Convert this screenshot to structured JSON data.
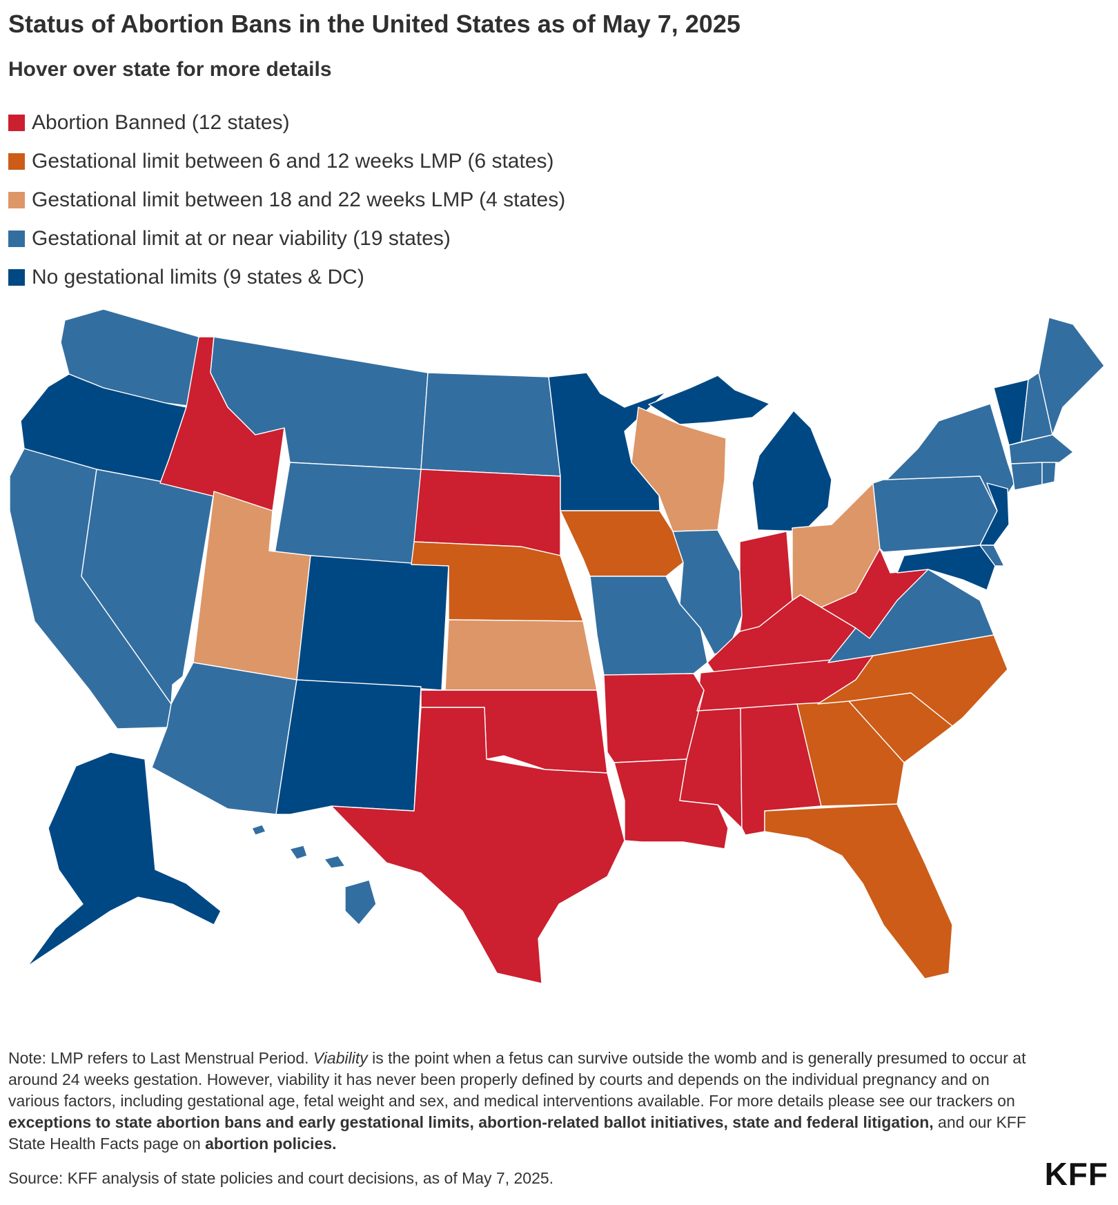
{
  "title": "Status of Abortion Bans in the United States as of May 7, 2025",
  "subtitle": "Hover over state for more details",
  "legend": [
    {
      "label": "Abortion Banned (12 states)",
      "color": "#cc1f2f"
    },
    {
      "label": "Gestational limit between 6 and 12 weeks LMP (6 states)",
      "color": "#cc5c18"
    },
    {
      "label": "Gestational limit between 18 and 22 weeks LMP (4 states)",
      "color": "#dd9668"
    },
    {
      "label": "Gestational limit at or near viability (19 states)",
      "color": "#336ea0"
    },
    {
      "label": "No gestational limits (9 states & DC)",
      "color": "#004884"
    }
  ],
  "note": {
    "p1": "Note: LMP refers to Last Menstrual Period. ",
    "viability": "Viability",
    "p2": " is the point when a fetus can survive outside the womb and is generally presumed to occur at around 24 weeks gestation. However, viability it has never been properly defined by courts and depends on the individual pregnancy and on various factors, including gestational age, fetal weight and sex, and medical interventions available. For more details please see our trackers on ",
    "link1": "exceptions to state abortion bans and early gestational limits, abortion-related ballot initiatives, state and federal litigation,",
    "p3": " and our KFF State Health Facts page on ",
    "link2": "abortion policies."
  },
  "source": "Source: KFF analysis of state policies and court decisions, as of May 7, 2025.",
  "logo": "KFF"
}
